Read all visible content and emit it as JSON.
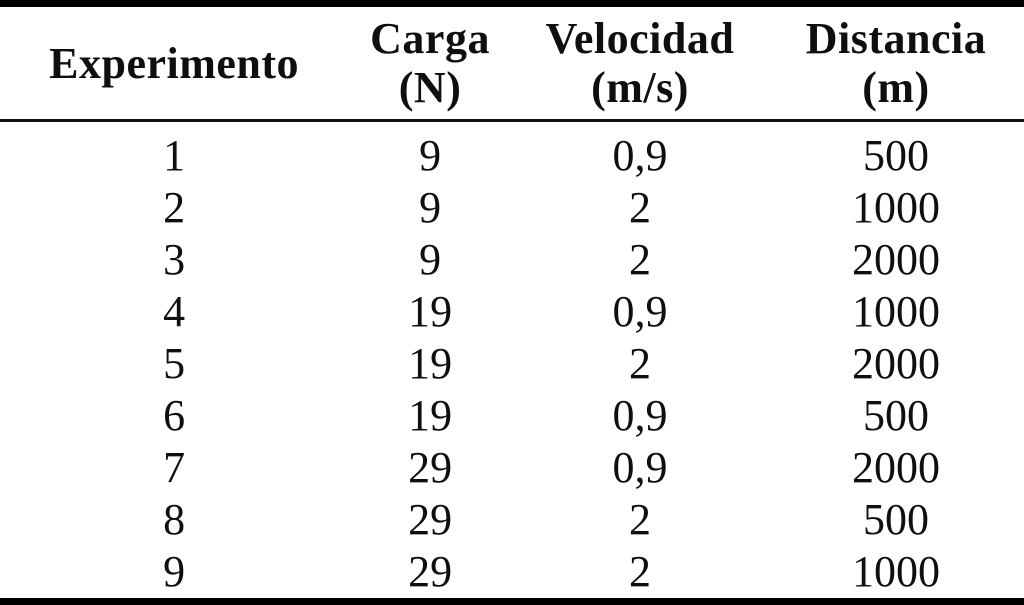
{
  "page": {
    "background_color": "#ffffff",
    "text_color": "#0f0f0f",
    "rule_color": "#000000"
  },
  "table": {
    "columns": [
      {
        "title": "Experimento",
        "unit": ""
      },
      {
        "title": "Carga",
        "unit": "(N)"
      },
      {
        "title": "Velocidad",
        "unit": "(m/s)"
      },
      {
        "title": "Distancia",
        "unit": "(m)"
      }
    ],
    "rows": [
      {
        "experimento": "1",
        "carga": "9",
        "velocidad": "0,9",
        "distancia": "500"
      },
      {
        "experimento": "2",
        "carga": "9",
        "velocidad": "2",
        "distancia": "1000"
      },
      {
        "experimento": "3",
        "carga": "9",
        "velocidad": "2",
        "distancia": "2000"
      },
      {
        "experimento": "4",
        "carga": "19",
        "velocidad": "0,9",
        "distancia": "1000"
      },
      {
        "experimento": "5",
        "carga": "19",
        "velocidad": "2",
        "distancia": "2000"
      },
      {
        "experimento": "6",
        "carga": "19",
        "velocidad": "0,9",
        "distancia": "500"
      },
      {
        "experimento": "7",
        "carga": "29",
        "velocidad": "0,9",
        "distancia": "2000"
      },
      {
        "experimento": "8",
        "carga": "29",
        "velocidad": "2",
        "distancia": "500"
      },
      {
        "experimento": "9",
        "carga": "29",
        "velocidad": "2",
        "distancia": "1000"
      }
    ]
  }
}
